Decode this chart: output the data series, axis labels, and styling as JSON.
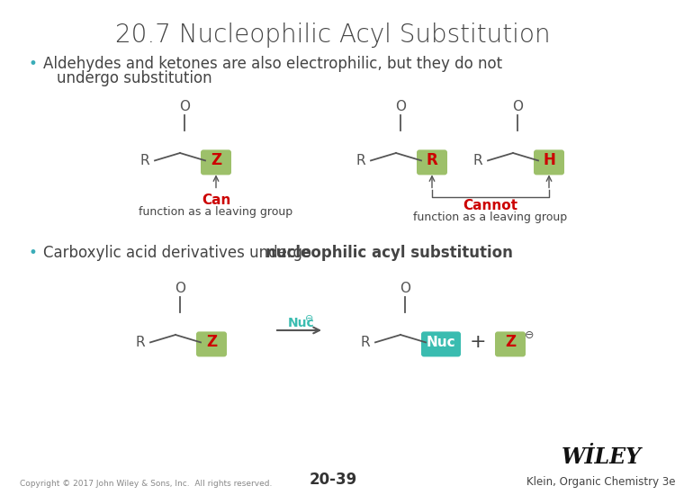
{
  "title": "20.7 Nucleophilic Acyl Substitution",
  "title_fontsize": 20,
  "bg_color": "#ffffff",
  "bullet1_line1": "Aldehydes and ketones are also electrophilic, but they do not",
  "bullet1_line2": "undergo substitution",
  "bullet2_normal": "Carboxylic acid derivatives undergo ",
  "bullet2_bold": "nucleophilic acyl substitution",
  "bullet_fontsize": 12,
  "can_color": "#cc0000",
  "cannot_color": "#cc0000",
  "green_box_color": "#9dc06a",
  "red_box_color": "#cc3333",
  "teal_box_color": "#3abcb0",
  "footer_copyright": "Copyright © 2017 John Wiley & Sons, Inc.  All rights reserved.",
  "footer_page": "20-39",
  "footer_ref": "Klein, Organic Chemistry 3e",
  "line_color": "#555555",
  "text_color": "#444444"
}
